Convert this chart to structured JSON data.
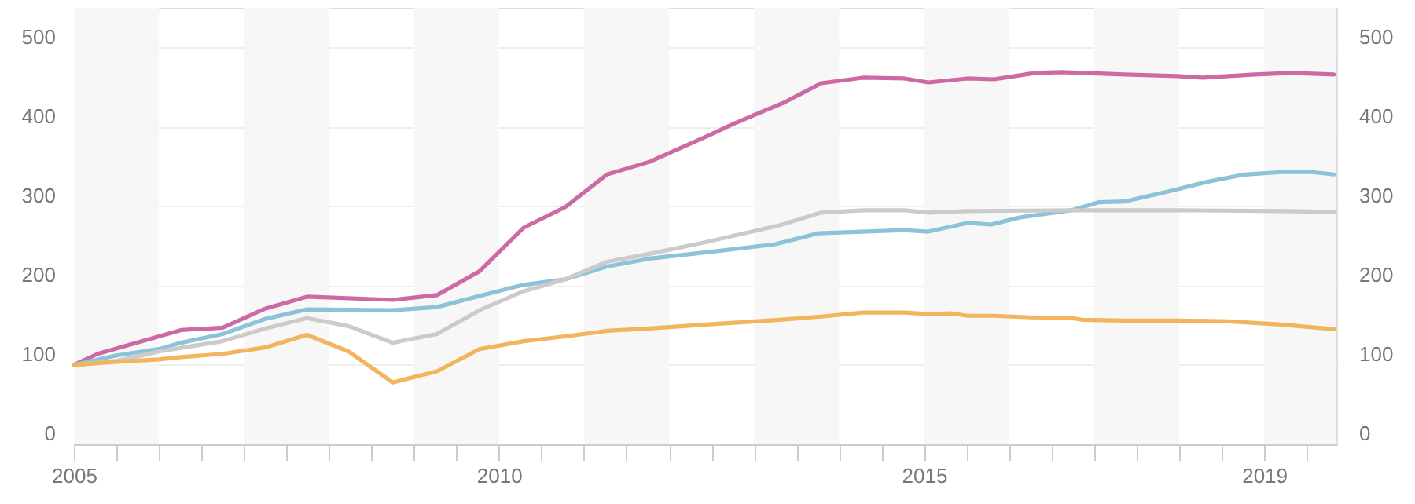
{
  "chart_data": {
    "type": "line",
    "xlim": [
      2005,
      2019.85
    ],
    "ylim": [
      0,
      550
    ],
    "y2lim": [
      0,
      550
    ],
    "yticks": [
      0,
      100,
      200,
      300,
      400,
      500
    ],
    "y2ticks": [
      0,
      100,
      200,
      300,
      400,
      500
    ],
    "xticks": [
      2005,
      {
        "value": 2005.5,
        "label": null
      },
      {
        "value": 2006,
        "label": null
      },
      {
        "value": 2006.5,
        "label": null
      },
      {
        "value": 2007,
        "label": null
      },
      {
        "value": 2007.5,
        "label": null
      },
      {
        "value": 2008,
        "label": null
      },
      {
        "value": 2008.5,
        "label": null
      },
      {
        "value": 2009,
        "label": null
      },
      {
        "value": 2009.5,
        "label": null
      },
      2010,
      {
        "value": 2010.5,
        "label": null
      },
      {
        "value": 2011,
        "label": null
      },
      {
        "value": 2011.5,
        "label": null
      },
      {
        "value": 2012,
        "label": null
      },
      {
        "value": 2012.5,
        "label": null
      },
      {
        "value": 2013,
        "label": null
      },
      {
        "value": 2013.5,
        "label": null
      },
      {
        "value": 2014,
        "label": null
      },
      {
        "value": 2014.5,
        "label": null
      },
      2015,
      {
        "value": 2015.5,
        "label": null
      },
      {
        "value": 2016,
        "label": null
      },
      {
        "value": 2016.5,
        "label": null
      },
      {
        "value": 2017,
        "label": null
      },
      {
        "value": 2017.5,
        "label": null
      },
      {
        "value": 2018,
        "label": null
      },
      {
        "value": 2018.5,
        "label": null
      },
      2019,
      {
        "value": 2019.5,
        "label": null
      }
    ],
    "grid": "y",
    "line_style": "solid",
    "marker": "none",
    "bands": [
      {
        "axis": "x",
        "from": 2005,
        "to": 2006,
        "color": "#f7f7f7"
      },
      {
        "axis": "x",
        "from": 2007,
        "to": 2008,
        "color": "#f7f7f7"
      },
      {
        "axis": "x",
        "from": 2009,
        "to": 2010,
        "color": "#f7f7f7"
      },
      {
        "axis": "x",
        "from": 2011,
        "to": 2012,
        "color": "#f7f7f7"
      },
      {
        "axis": "x",
        "from": 2013,
        "to": 2014,
        "color": "#f7f7f7"
      },
      {
        "axis": "x",
        "from": 2015,
        "to": 2016,
        "color": "#f7f7f7"
      },
      {
        "axis": "x",
        "from": 2017,
        "to": 2018,
        "color": "#f7f7f7"
      },
      {
        "axis": "x",
        "from": 2019,
        "to": 2019.85,
        "color": "#f7f7f7"
      }
    ],
    "series": [
      {
        "color": "#cc6aa6",
        "x": [
          2005.0,
          2005.28,
          2006.0,
          2006.26,
          2006.75,
          2007.25,
          2007.74,
          2008.75,
          2009.27,
          2009.77,
          2010.29,
          2010.78,
          2011.27,
          2011.77,
          2012.44,
          2012.74,
          2013.05,
          2013.36,
          2013.79,
          2014.28,
          2014.77,
          2015.05,
          2015.51,
          2015.82,
          2016.31,
          2016.62,
          2017.36,
          2017.97,
          2018.28,
          2018.89,
          2019.32,
          2019.82
        ],
        "values": [
          100,
          114,
          136,
          144,
          147,
          171,
          186,
          182,
          188,
          218,
          273,
          299,
          340,
          356,
          388,
          403,
          417,
          431,
          455,
          462,
          461,
          456,
          461,
          460,
          468,
          469,
          466,
          464,
          462,
          466,
          468,
          466
        ]
      },
      {
        "color": "#8cc3d9",
        "x": [
          2005.0,
          2005.5,
          2006.0,
          2006.26,
          2006.75,
          2007.25,
          2007.74,
          2008.75,
          2009.27,
          2009.77,
          2010.29,
          2010.78,
          2011.27,
          2011.77,
          2012.44,
          2013.24,
          2013.76,
          2014.77,
          2015.05,
          2015.51,
          2015.79,
          2016.13,
          2016.74,
          2017.05,
          2017.36,
          2017.6,
          2017.85,
          2018.34,
          2018.77,
          2019.2,
          2019.57,
          2019.82
        ],
        "values": [
          100,
          112,
          120,
          128,
          139,
          158,
          170,
          169,
          173,
          187,
          201,
          208,
          224,
          234,
          242,
          252,
          266,
          270,
          268,
          279,
          277,
          286,
          295,
          305,
          306,
          312,
          318,
          331,
          340,
          343,
          343,
          340
        ]
      },
      {
        "color": "#cbcbcb",
        "x": [
          2005.0,
          2005.5,
          2006.0,
          2006.75,
          2007.25,
          2007.74,
          2008.23,
          2008.75,
          2009.27,
          2009.77,
          2010.29,
          2010.78,
          2011.27,
          2011.77,
          2012.44,
          2013.3,
          2013.79,
          2014.28,
          2014.77,
          2015.05,
          2015.51,
          2016.74,
          2017.97,
          2019.2,
          2019.82
        ],
        "values": [
          100,
          105,
          117,
          130,
          146,
          159,
          149,
          128,
          139,
          169,
          193,
          208,
          230,
          240,
          255,
          276,
          292,
          295,
          295,
          292,
          294,
          295,
          295,
          294,
          293
        ]
      },
      {
        "color": "#f2b45c",
        "x": [
          2005.0,
          2005.5,
          2006.0,
          2006.26,
          2006.75,
          2007.25,
          2007.74,
          2008.23,
          2008.75,
          2009.27,
          2009.77,
          2010.29,
          2010.78,
          2011.27,
          2011.77,
          2012.44,
          2013.3,
          2013.79,
          2014.28,
          2014.77,
          2015.05,
          2015.33,
          2015.51,
          2015.82,
          2016.25,
          2016.74,
          2016.86,
          2017.36,
          2017.97,
          2018.59,
          2019.2,
          2019.82
        ],
        "values": [
          100,
          104,
          107,
          110,
          114,
          122,
          138,
          117,
          78,
          92,
          120,
          130,
          136,
          143,
          146,
          151,
          157,
          161,
          166,
          166,
          164,
          165,
          162,
          162,
          160,
          159,
          157,
          156,
          156,
          155,
          151,
          145
        ]
      }
    ]
  }
}
